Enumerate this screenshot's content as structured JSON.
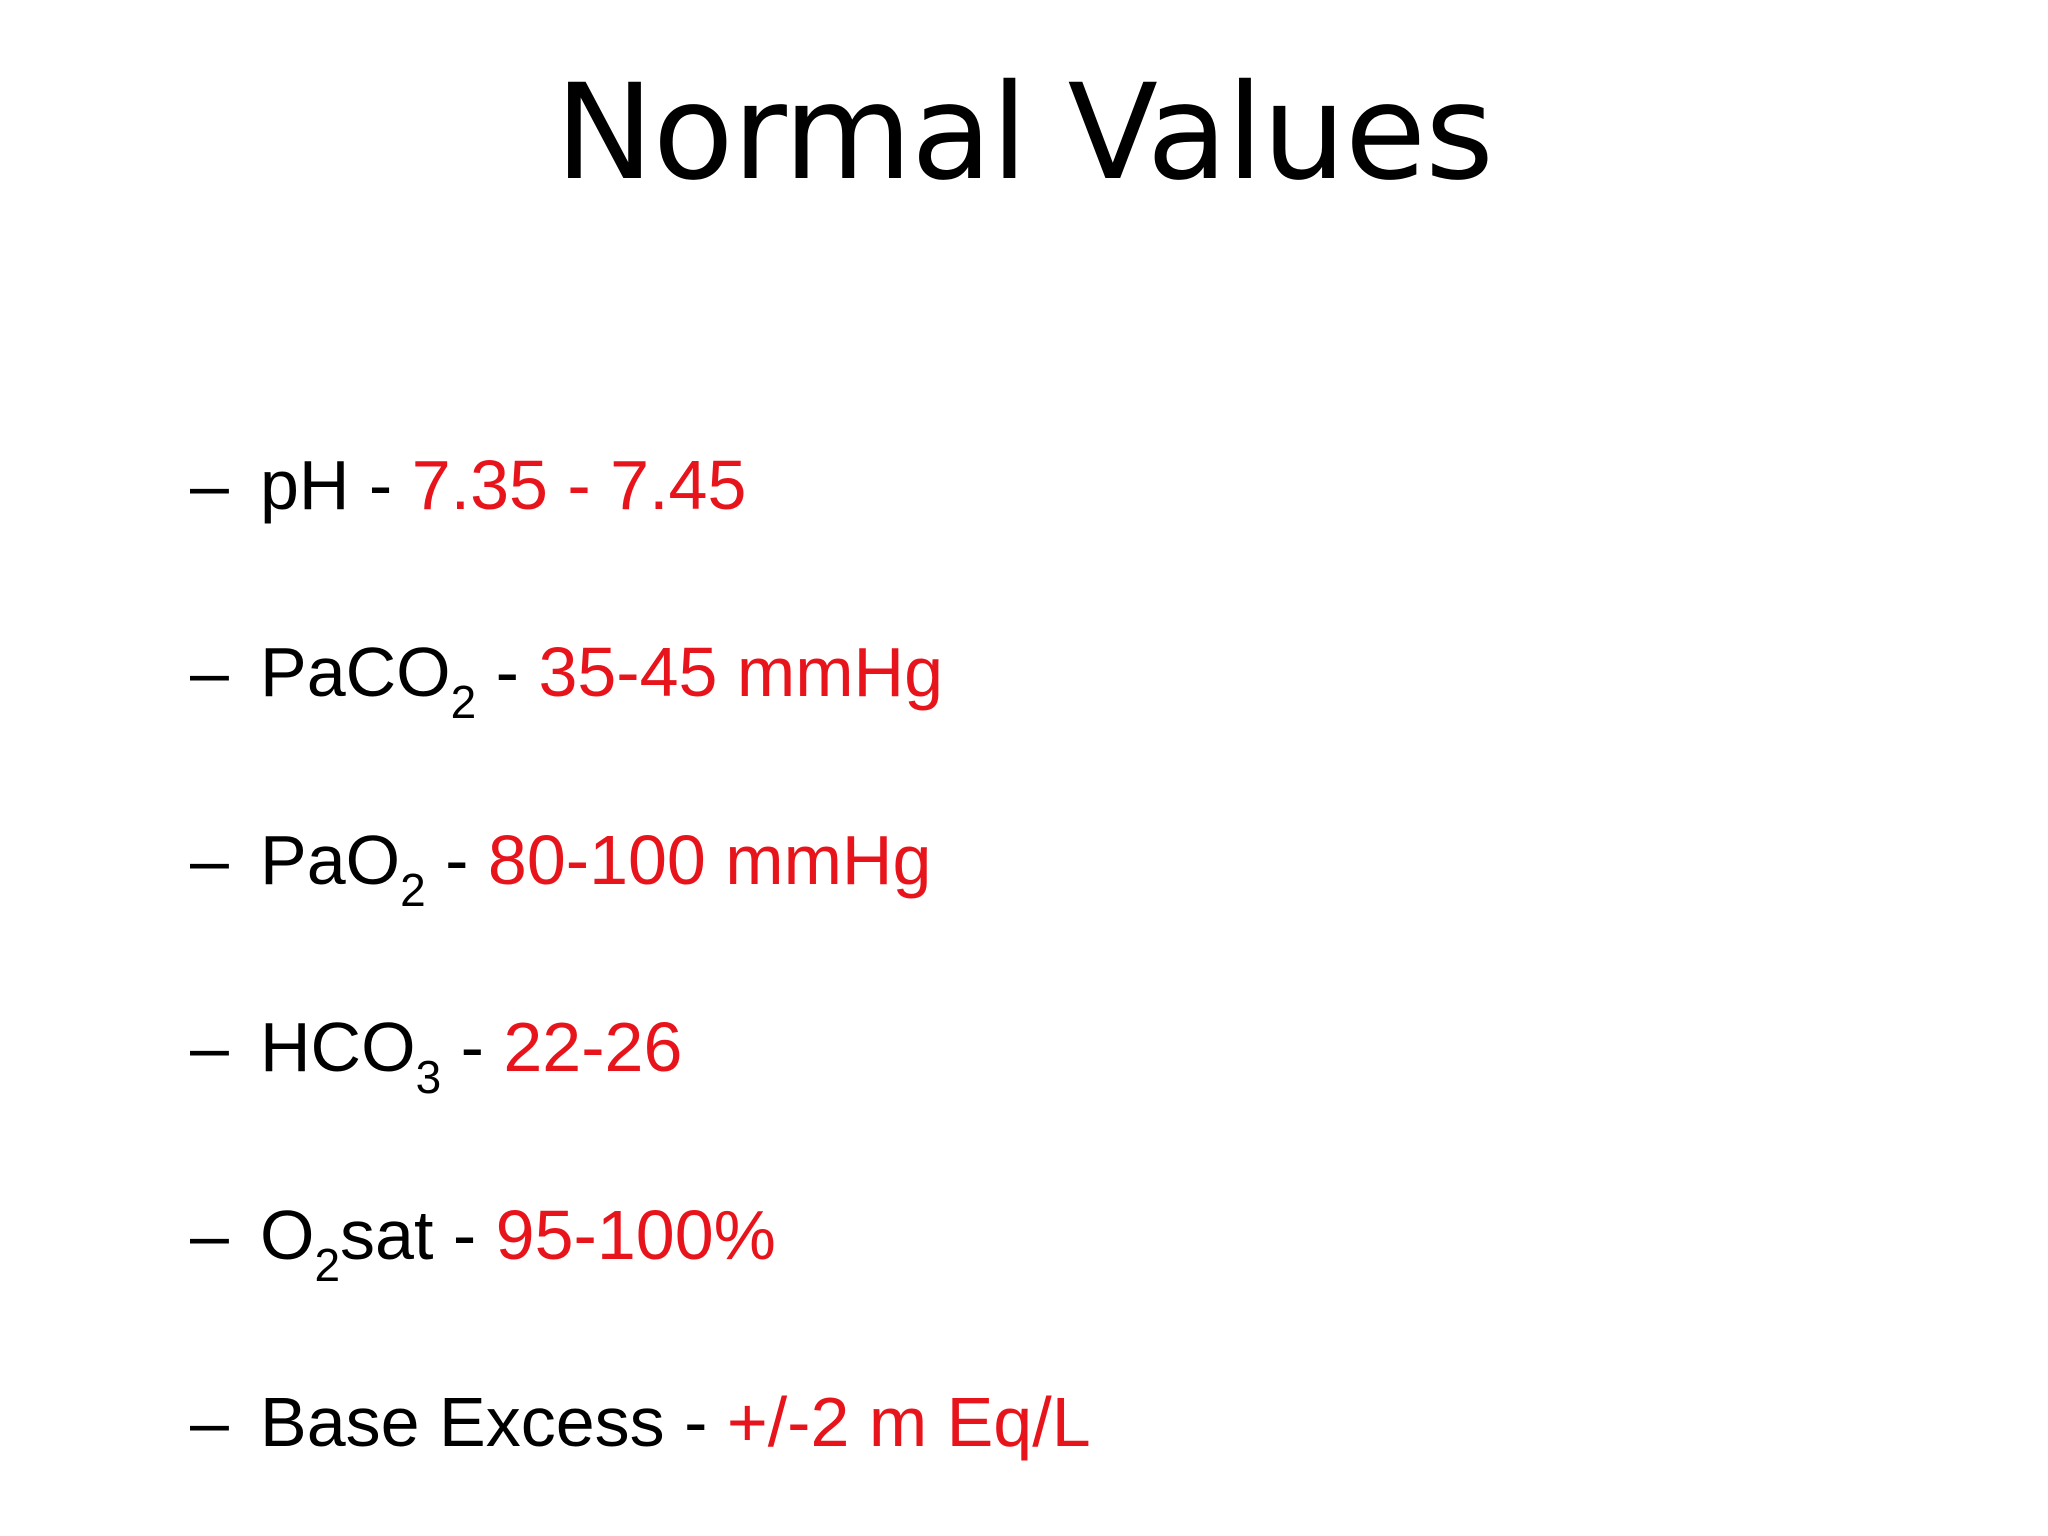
{
  "slide": {
    "title": "Normal Values",
    "bullet_marker": "–",
    "value_color": "#e8141b",
    "items": [
      {
        "label": "pH",
        "subscript": "",
        "suffix": "",
        "separator": " - ",
        "value": "7.35 - 7.45"
      },
      {
        "label": "PaCO",
        "subscript": "2",
        "suffix": "",
        "separator": " - ",
        "value": "35-45 mmHg"
      },
      {
        "label": "PaO",
        "subscript": "2",
        "suffix": "",
        "separator": " - ",
        "value": "80-100 mmHg"
      },
      {
        "label": "HCO",
        "subscript": "3",
        "suffix": "",
        "separator": " - ",
        "value": "22-26"
      },
      {
        "label": "O",
        "subscript": "2",
        "suffix": "sat",
        "separator": " - ",
        "value": "95-100%"
      },
      {
        "label": "Base Excess",
        "subscript": "",
        "suffix": "",
        "separator": " - ",
        "value": "+/-2 m Eq/L"
      }
    ]
  }
}
